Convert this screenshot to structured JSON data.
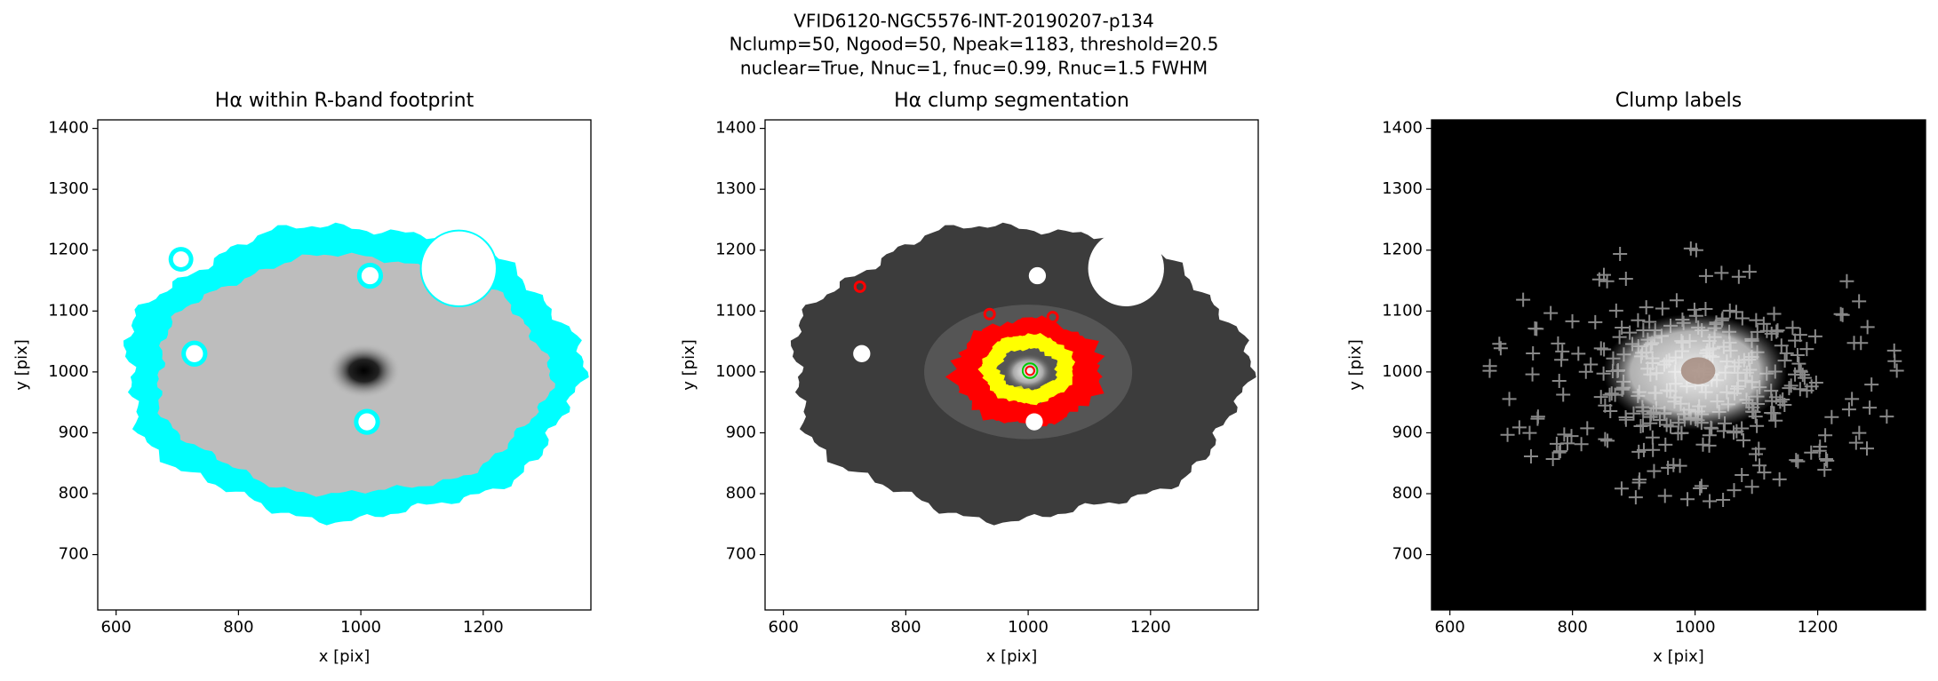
{
  "suptitle": [
    "VFID6120-NGC5576-INT-20190207-p134",
    "Nclump=50, Ngood=50, Npeak=1183, threshold=20.5",
    "nuclear=True, Nnuc=1, fnuc=0.99, Rnuc=1.5 FWHM"
  ],
  "chart_data": [
    {
      "type": "image",
      "title": "Hα within R-band footprint",
      "xlabel": "x [pix]",
      "ylabel": "y [pix]",
      "xlim": [
        570,
        1376
      ],
      "ylim": [
        609,
        1414
      ],
      "xticks": [
        600,
        800,
        1000,
        1200
      ],
      "yticks": [
        700,
        800,
        900,
        1000,
        1100,
        1200,
        1300,
        1400
      ]
    },
    {
      "type": "image",
      "title": "Hα clump segmentation",
      "xlabel": "x [pix]",
      "ylabel": "y [pix]",
      "xlim": [
        570,
        1376
      ],
      "ylim": [
        609,
        1414
      ],
      "xticks": [
        600,
        800,
        1000,
        1200
      ],
      "yticks": [
        700,
        800,
        900,
        1000,
        1100,
        1200,
        1300,
        1400
      ]
    },
    {
      "type": "image",
      "title": "Clump labels",
      "xlabel": "x [pix]",
      "ylabel": "y [pix]",
      "xlim": [
        570,
        1376
      ],
      "ylim": [
        609,
        1414
      ],
      "xticks": [
        600,
        800,
        1000,
        1200
      ],
      "yticks": [
        700,
        800,
        900,
        1000,
        1100,
        1200,
        1300,
        1400
      ]
    }
  ]
}
